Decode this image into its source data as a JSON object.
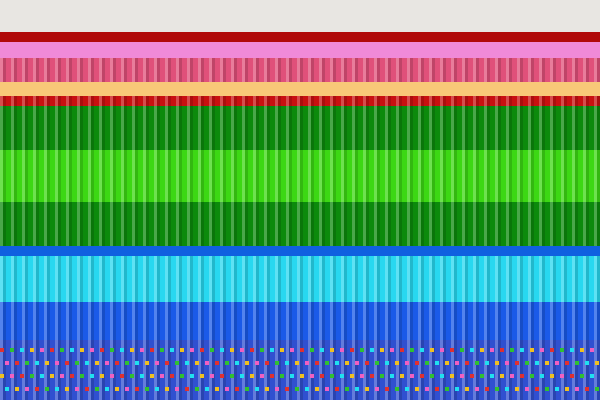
{
  "bands": [
    {
      "name": "wall-background",
      "color": "#e8e6e2",
      "noise": false
    },
    {
      "name": "dark-red-band",
      "color": "#b00a0a",
      "noise": false
    },
    {
      "name": "pink-band",
      "color": "#f08ad8",
      "noise": false
    },
    {
      "name": "pink-red-noise-band",
      "color": "#e0507a",
      "noise": true
    },
    {
      "name": "peach-band",
      "color": "#f8c878",
      "noise": false
    },
    {
      "name": "red-band",
      "color": "#c81010",
      "noise": true
    },
    {
      "name": "dark-green-band",
      "color": "#0c8a0c",
      "noise": true
    },
    {
      "name": "bright-green-band",
      "color": "#3cd814",
      "noise": true
    },
    {
      "name": "dark-green-band-2",
      "color": "#0c8a0c",
      "noise": true
    },
    {
      "name": "blue-band",
      "color": "#1060e0",
      "noise": false
    },
    {
      "name": "cyan-band",
      "color": "#28d8f0",
      "noise": true
    },
    {
      "name": "blue-band-2",
      "color": "#1a5ae8",
      "noise": true
    },
    {
      "name": "multicolor-noise-band",
      "color": "#3050d0",
      "noise": true
    }
  ]
}
